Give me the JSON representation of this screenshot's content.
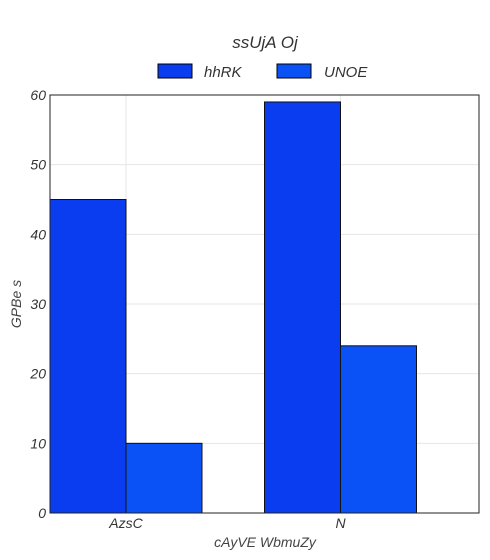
{
  "chart_data": {
    "type": "bar",
    "title": "ssUjA  Oj",
    "xlabel": "cAyVE WbmuZy",
    "ylabel": "GPBe  s",
    "categories": [
      "AzsC",
      "N"
    ],
    "series": [
      {
        "name": "hhRK",
        "values": [
          45,
          59
        ],
        "color": "#0a3cf0"
      },
      {
        "name": "UNOE",
        "values": [
          10,
          24
        ],
        "color": "#0a52f6"
      }
    ],
    "ylim": [
      0,
      60
    ],
    "yticks": [
      0,
      10,
      20,
      30,
      40,
      50,
      60
    ],
    "grid": true,
    "legend_position": "top-center"
  }
}
